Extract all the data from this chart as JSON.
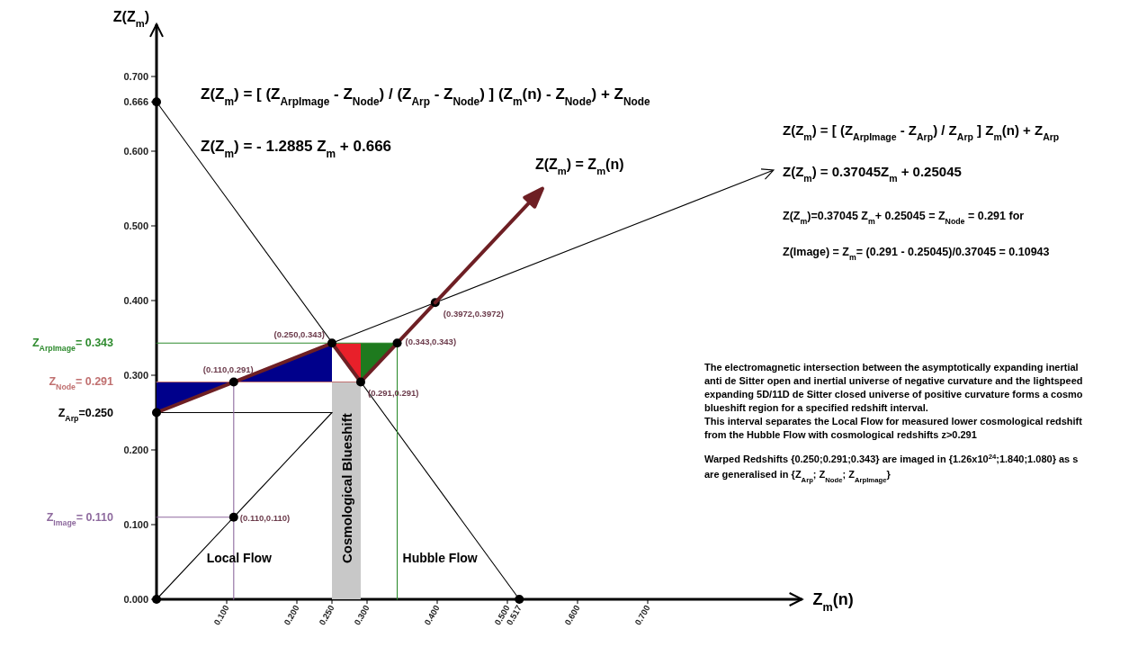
{
  "chart_data": {
    "type": "line",
    "xlabel": "Z$_{m}$(n)",
    "ylabel": "Z(Z$_{m}$)",
    "xlim": [
      0,
      0.92
    ],
    "ylim": [
      0,
      0.77
    ],
    "xticks": [
      {
        "value": 0.1,
        "label": "0.100"
      },
      {
        "value": 0.2,
        "label": "0.200"
      },
      {
        "value": 0.25,
        "label": "0.250"
      },
      {
        "value": 0.3,
        "label": "0.300"
      },
      {
        "value": 0.4,
        "label": "0.400"
      },
      {
        "value": 0.5,
        "label": "0.500"
      },
      {
        "value": 0.517,
        "label": "0.517"
      },
      {
        "value": 0.6,
        "label": "0.600"
      },
      {
        "value": 0.7,
        "label": "0.700"
      }
    ],
    "yticks": [
      {
        "value": 0,
        "label": "0.000"
      },
      {
        "value": 0.1,
        "label": "0.100"
      },
      {
        "value": 0.2,
        "label": "0.200"
      },
      {
        "value": 0.3,
        "label": "0.300"
      },
      {
        "value": 0.4,
        "label": "0.400"
      },
      {
        "value": 0.5,
        "label": "0.500"
      },
      {
        "value": 0.6,
        "label": "0.600"
      },
      {
        "value": 0.666,
        "label": "0.666"
      },
      {
        "value": 0.7,
        "label": "0.700"
      }
    ],
    "series": [
      {
        "type": "area",
        "name": "Cosmological Blueshift",
        "color": "#c8c8c8",
        "x": [
          0.25,
          0.291
        ],
        "values": [
          0.291,
          0.291
        ]
      },
      {
        "color": "#000000",
        "x": [
          0,
          0.517
        ],
        "values": [
          0.666,
          0
        ]
      },
      {
        "color": "#000000",
        "x": [
          0,
          0.25
        ],
        "values": [
          0,
          0.25
        ]
      },
      {
        "color": "#000000",
        "x": [
          0,
          0.25,
          0.3972
        ],
        "values": [
          0.25,
          0.343,
          0.3972
        ]
      },
      {
        "name": "Z$_{ArpImage}$= 0.343",
        "color": "#2e8b2e",
        "x": [
          0,
          0.343,
          0.343
        ],
        "values": [
          0.343,
          0.343,
          0
        ]
      },
      {
        "name": "Z$_{Node}$= 0.291",
        "color": "#c07070",
        "x": [
          0,
          0.291
        ],
        "values": [
          0.291,
          0.291
        ]
      },
      {
        "name": "Z$_{Arp}$=0.250",
        "color": "#000000",
        "x": [
          0,
          0.25
        ],
        "values": [
          0.25,
          0.25
        ]
      },
      {
        "name": "Z$_{Image}$= 0.110",
        "color": "#8e6a9e",
        "x": [
          0,
          0.11
        ],
        "values": [
          0.11,
          0.11
        ]
      },
      {
        "color": "#8e6a9e",
        "x": [
          0.11,
          0.11
        ],
        "values": [
          0.291,
          0
        ]
      },
      {
        "color": "#6e1f24",
        "x": [
          0,
          0.25,
          0.291,
          0.343,
          0.3972
        ],
        "values": [
          0.25,
          0.343,
          0.291,
          0.343,
          0.3972
        ]
      },
      {
        "type": "scatter",
        "marker": "circle",
        "color": "#000000",
        "x": [
          0,
          0,
          0,
          0.11,
          0.11,
          0.25,
          0.291,
          0.343,
          0.3972,
          0.517
        ],
        "values": [
          0,
          0.666,
          0.25,
          0.291,
          0.11,
          0.343,
          0.291,
          0.343,
          0.3972,
          0
        ],
        "value_labels": [
          null,
          null,
          null,
          "(0.110,0.291)",
          "(0.110,0.110)",
          "(0.250,0.343)",
          "(0.291,0.291)",
          "(0.343,0.343)",
          "(0.3972,0.3972)",
          null
        ]
      }
    ],
    "annotations": [
      "Z(Z$_{m}$) = [ (Z$_{ArpImage}$ - Z$_{Node}$) / (Z$_{Arp}$ - Z$_{Node}$) ] (Z$_{m}$(n) - Z$_{Node}$) + Z$_{Node}$",
      "Z(Z$_{m}$) = - 1.2885 Z$_{m}$ + 0.666",
      "Z(Z$_{m}$) = [ (Z$_{ArpImage}$ - Z$_{Arp}$) / Z$_{Arp}$ ] Z$_{m}$(n) + Z$_{Arp}$",
      "Z(Z$_{m}$) = 0.37045Z$_{m}$ + 0.25045",
      "Z(Z$_{m}$)=0.37045 Z$_{m}$+ 0.25045 = Z$_{Node}$ = 0.291   for",
      "Z(Image) = Z$_{m}$= (0.291 - 0.25045)/0.37045 = 0.10943",
      "The electromagnetic intersection between the asymptotically expanding inertial",
      "anti de Sitter open and inertial universe of negative curvature and the lightspeed",
      "expanding 5D/11D de Sitter closed universe of positive curvature forms a cosmo",
      "blueshift region for a specified redshift interval.",
      "This interval separates the Local Flow for measured lower cosmological redshift",
      "from the Hubble Flow with cosmological redshifts z>0.291",
      "Warped Redshifts {0.250;0.291;0.343} are imaged in {1.26x10$^{24}$;1.840;1.080} as s",
      "are generalised in {Z$_{Arp}$; Z$_{Node}$; Z$_{ArpImage}$}",
      {
        "text": "Local Flow",
        "x": 0.11,
        "y": 0.05
      },
      {
        "text": "Hubble Flow",
        "x": 0.343,
        "y": 0.05
      },
      "Z(Z$_{m}$) = Z$_{m}$(n)"
    ]
  }
}
